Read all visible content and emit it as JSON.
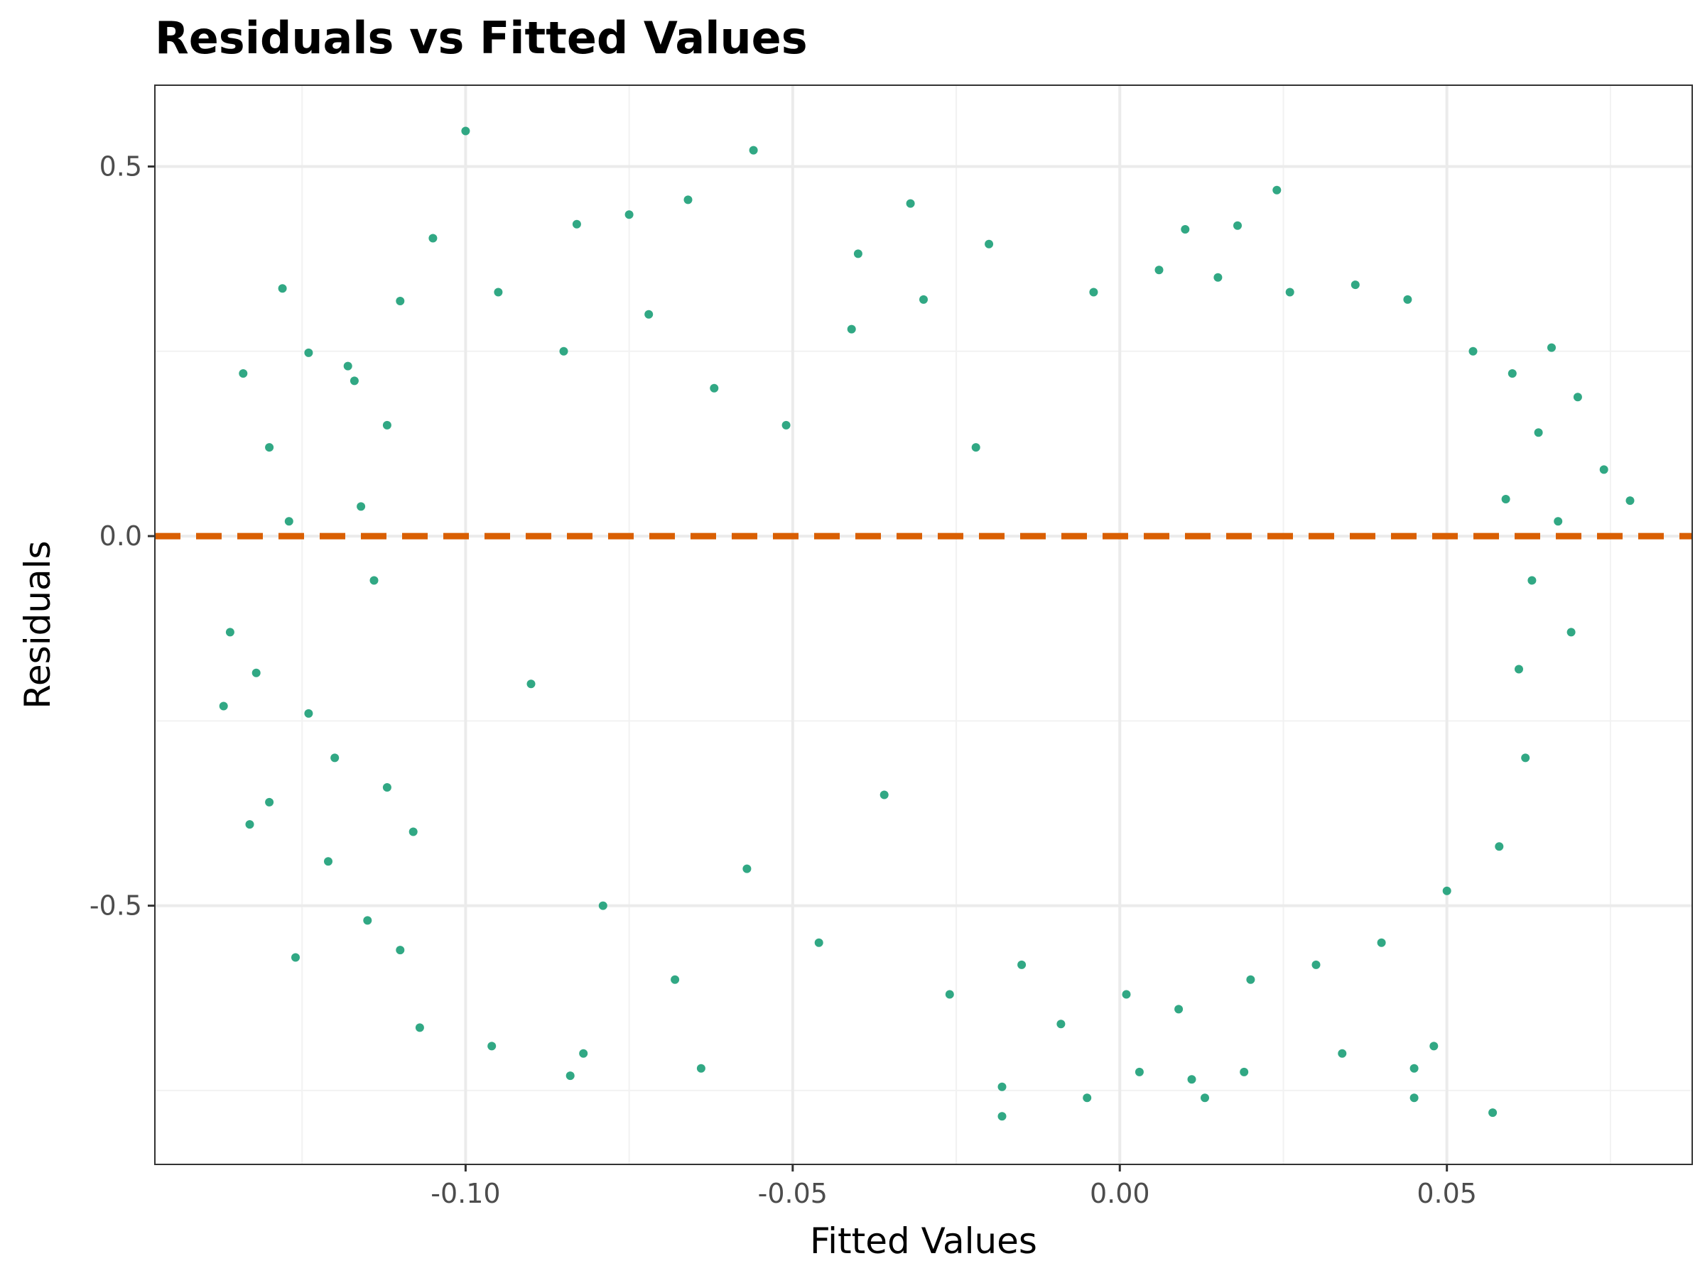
{
  "chart_data": {
    "type": "scatter",
    "title": "Residuals vs Fitted Values",
    "xlabel": "Fitted Values",
    "ylabel": "Residuals",
    "xlim": [
      -0.1475,
      0.0875
    ],
    "ylim": [
      -0.85,
      0.61
    ],
    "x_ticks": [
      -0.1,
      -0.05,
      0.0,
      0.05
    ],
    "x_tick_labels": [
      "-0.10",
      "-0.05",
      "0.00",
      "0.05"
    ],
    "y_ticks": [
      -0.5,
      0.0,
      0.5
    ],
    "y_tick_labels": [
      "-0.5",
      "0.0",
      "0.5"
    ],
    "grid": true,
    "reference_line": {
      "y": 0,
      "style": "dashed",
      "color": "#d95f02"
    },
    "point_color": "#1b9e77",
    "points": [
      [
        -0.1,
        0.548
      ],
      [
        -0.056,
        0.522
      ],
      [
        -0.032,
        0.45
      ],
      [
        0.024,
        0.468
      ],
      [
        -0.066,
        0.455
      ],
      [
        -0.075,
        0.435
      ],
      [
        0.018,
        0.42
      ],
      [
        -0.083,
        0.422
      ],
      [
        -0.105,
        0.403
      ],
      [
        0.01,
        0.415
      ],
      [
        -0.04,
        0.382
      ],
      [
        -0.02,
        0.395
      ],
      [
        -0.128,
        0.335
      ],
      [
        -0.124,
        0.248
      ],
      [
        -0.134,
        0.22
      ],
      [
        -0.117,
        0.21
      ],
      [
        -0.11,
        0.318
      ],
      [
        -0.095,
        0.33
      ],
      [
        -0.136,
        -0.13
      ],
      [
        -0.132,
        -0.185
      ],
      [
        -0.124,
        -0.24
      ],
      [
        -0.12,
        -0.3
      ],
      [
        -0.13,
        -0.36
      ],
      [
        -0.137,
        -0.23
      ],
      [
        -0.126,
        -0.57
      ],
      [
        -0.107,
        -0.665
      ],
      [
        -0.096,
        -0.69
      ],
      [
        -0.084,
        -0.73
      ],
      [
        -0.082,
        -0.7
      ],
      [
        -0.064,
        -0.72
      ],
      [
        -0.018,
        -0.745
      ],
      [
        -0.018,
        -0.785
      ],
      [
        -0.005,
        -0.76
      ],
      [
        0.003,
        -0.725
      ],
      [
        0.011,
        -0.735
      ],
      [
        0.013,
        -0.76
      ],
      [
        0.019,
        -0.725
      ],
      [
        0.034,
        -0.7
      ],
      [
        0.045,
        -0.76
      ],
      [
        0.048,
        -0.69
      ],
      [
        0.057,
        -0.78
      ],
      [
        0.045,
        -0.72
      ],
      [
        0.078,
        0.048
      ],
      [
        0.074,
        0.09
      ],
      [
        0.07,
        0.188
      ],
      [
        0.069,
        -0.13
      ],
      [
        0.066,
        0.255
      ],
      [
        0.067,
        0.02
      ],
      [
        -0.112,
        0.15
      ],
      [
        -0.116,
        0.04
      ],
      [
        -0.114,
        -0.06
      ],
      [
        -0.118,
        0.23
      ],
      [
        -0.13,
        0.12
      ],
      [
        -0.127,
        0.02
      ],
      [
        -0.133,
        -0.39
      ],
      [
        -0.121,
        -0.44
      ],
      [
        -0.115,
        -0.52
      ],
      [
        -0.112,
        -0.34
      ],
      [
        -0.11,
        -0.56
      ],
      [
        -0.108,
        -0.4
      ],
      [
        -0.09,
        -0.2
      ],
      [
        -0.085,
        0.25
      ],
      [
        -0.079,
        -0.5
      ],
      [
        -0.072,
        0.3
      ],
      [
        -0.068,
        -0.6
      ],
      [
        -0.062,
        0.2
      ],
      [
        -0.057,
        -0.45
      ],
      [
        -0.051,
        0.15
      ],
      [
        -0.046,
        -0.55
      ],
      [
        -0.041,
        0.28
      ],
      [
        -0.036,
        -0.35
      ],
      [
        -0.03,
        0.32
      ],
      [
        -0.026,
        -0.62
      ],
      [
        -0.022,
        0.12
      ],
      [
        -0.015,
        -0.58
      ],
      [
        -0.009,
        -0.66
      ],
      [
        -0.004,
        0.33
      ],
      [
        0.001,
        -0.62
      ],
      [
        0.006,
        0.36
      ],
      [
        0.009,
        -0.64
      ],
      [
        0.015,
        0.35
      ],
      [
        0.02,
        -0.6
      ],
      [
        0.026,
        0.33
      ],
      [
        0.03,
        -0.58
      ],
      [
        0.036,
        0.34
      ],
      [
        0.04,
        -0.55
      ],
      [
        0.044,
        0.32
      ],
      [
        0.05,
        -0.48
      ],
      [
        0.054,
        0.25
      ],
      [
        0.058,
        -0.42
      ],
      [
        0.06,
        0.22
      ],
      [
        0.062,
        -0.3
      ],
      [
        0.064,
        0.14
      ],
      [
        0.061,
        -0.18
      ],
      [
        0.059,
        0.05
      ],
      [
        0.063,
        -0.06
      ]
    ]
  }
}
